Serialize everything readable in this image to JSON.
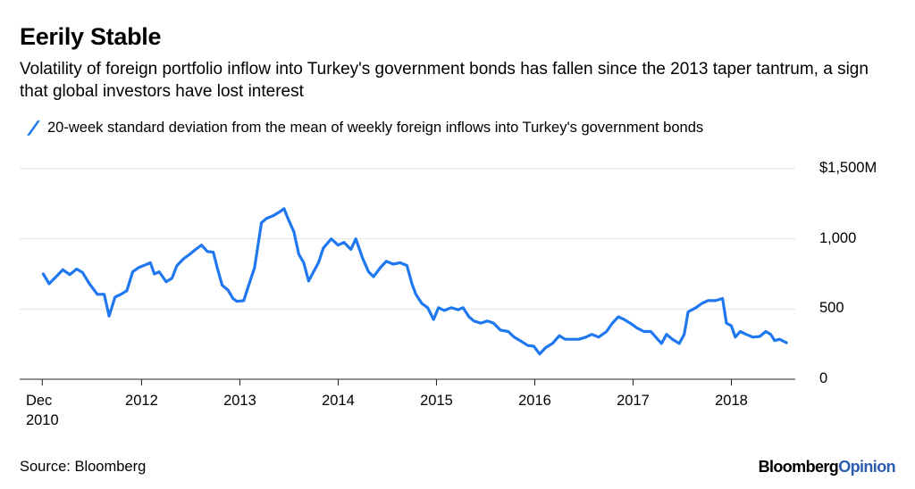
{
  "chart_data": {
    "type": "line",
    "title": "Eerily Stable",
    "subtitle": "Volatility of foreign portfolio inflow into Turkey's government bonds has fallen since the 2013 taper tantrum, a sign that global investors have lost interest",
    "source": "Source: Bloomberg",
    "brand": {
      "name": "Bloomberg",
      "suffix": "Opinion"
    },
    "x": [
      2011.0,
      2011.06,
      2011.13,
      2011.2,
      2011.27,
      2011.34,
      2011.4,
      2011.47,
      2011.55,
      2011.62,
      2011.67,
      2011.73,
      2011.79,
      2011.85,
      2011.91,
      2011.97,
      2012.04,
      2012.09,
      2012.13,
      2012.18,
      2012.25,
      2012.31,
      2012.36,
      2012.43,
      2012.49,
      2012.55,
      2012.61,
      2012.67,
      2012.73,
      2012.77,
      2012.82,
      2012.88,
      2012.93,
      2012.97,
      2013.04,
      2013.09,
      2013.15,
      2013.22,
      2013.27,
      2013.34,
      2013.4,
      2013.45,
      2013.49,
      2013.55,
      2013.6,
      2013.65,
      2013.7,
      2013.75,
      2013.8,
      2013.85,
      2013.93,
      2014.0,
      2014.06,
      2014.13,
      2014.18,
      2014.25,
      2014.31,
      2014.36,
      2014.43,
      2014.49,
      2014.56,
      2014.63,
      2014.7,
      2014.75,
      2014.79,
      2014.85,
      2014.91,
      2014.97,
      2015.02,
      2015.08,
      2015.15,
      2015.22,
      2015.27,
      2015.33,
      2015.38,
      2015.45,
      2015.52,
      2015.58,
      2015.65,
      2015.73,
      2015.79,
      2015.85,
      2015.93,
      2015.99,
      2016.05,
      2016.11,
      2016.18,
      2016.25,
      2016.31,
      2016.38,
      2016.45,
      2016.52,
      2016.58,
      2016.65,
      2016.73,
      2016.79,
      2016.85,
      2016.91,
      2016.97,
      2017.04,
      2017.11,
      2017.18,
      2017.25,
      2017.29,
      2017.34,
      2017.4,
      2017.47,
      2017.52,
      2017.56,
      2017.64,
      2017.7,
      2017.76,
      2017.84,
      2017.91,
      2017.95,
      2018.0,
      2018.04,
      2018.09,
      2018.15,
      2018.22,
      2018.29,
      2018.35,
      2018.4,
      2018.44,
      2018.49,
      2018.56
    ],
    "series": [
      {
        "name": "20-week standard deviation from the mean of weekly foreign inflows into Turkey's government bonds",
        "color": "#1f78f0",
        "values": [
          750,
          680,
          730,
          780,
          745,
          785,
          760,
          680,
          605,
          605,
          450,
          585,
          605,
          630,
          765,
          795,
          815,
          830,
          750,
          765,
          695,
          720,
          810,
          860,
          890,
          925,
          955,
          910,
          905,
          795,
          670,
          635,
          575,
          555,
          560,
          670,
          795,
          1115,
          1145,
          1165,
          1190,
          1215,
          1145,
          1050,
          890,
          830,
          700,
          765,
          830,
          935,
          1000,
          955,
          975,
          925,
          1000,
          860,
          765,
          730,
          795,
          840,
          820,
          830,
          810,
          680,
          605,
          540,
          510,
          425,
          510,
          490,
          510,
          495,
          510,
          445,
          415,
          400,
          415,
          400,
          350,
          340,
          300,
          275,
          240,
          235,
          180,
          225,
          255,
          310,
          285,
          285,
          285,
          300,
          320,
          300,
          340,
          400,
          445,
          425,
          400,
          365,
          340,
          340,
          285,
          255,
          320,
          285,
          255,
          320,
          480,
          510,
          540,
          560,
          560,
          575,
          400,
          380,
          300,
          340,
          320,
          300,
          305,
          340,
          320,
          275,
          285,
          260
        ]
      }
    ],
    "xlim": [
      2010.76,
      2018.65
    ],
    "xticks": [
      {
        "value": 2010.99,
        "label": "Dec 2010"
      },
      2012,
      2013,
      2014,
      2015,
      2016,
      2017,
      2018
    ],
    "ylim": [
      0,
      1500
    ],
    "yticks": [
      0,
      500,
      {
        "value": 1000,
        "label": "1,000"
      },
      {
        "value": 1500,
        "label": "$1,500M"
      }
    ],
    "grid": true
  }
}
